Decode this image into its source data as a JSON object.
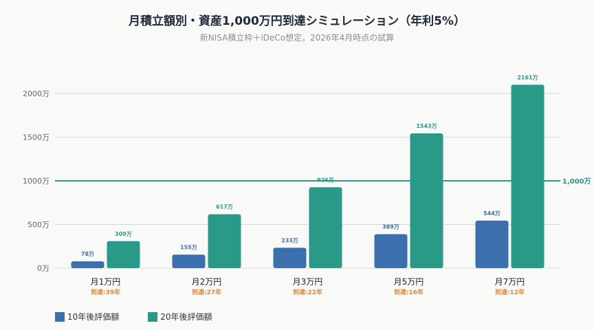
{
  "title": "月積立額別・資産1,000万円到達シミュレーション（年利5%）",
  "subtitle": "新NISA積立枠＋iDeCo想定。2026年4月時点の試算",
  "colors": {
    "series10": "#3b6fad",
    "series20": "#2a9a88",
    "reach": "#e08a3c",
    "target": "#2a9a88",
    "grid": "#d8d8d8",
    "axisText": "#666666"
  },
  "chart_data": {
    "type": "bar",
    "categories": [
      "月1万円",
      "月2万円",
      "月3万円",
      "月5万円",
      "月7万円"
    ],
    "reach_labels": [
      "到達:39年",
      "到達:27年",
      "到達:22年",
      "到達:16年",
      "到達:12年"
    ],
    "series": [
      {
        "name": "10年後評価額",
        "values": [
          78,
          155,
          233,
          389,
          544
        ],
        "labels": [
          "78万",
          "155万",
          "233万",
          "389万",
          "544万"
        ]
      },
      {
        "name": "20年後評価額",
        "values": [
          309,
          617,
          926,
          1543,
          2161
        ],
        "labels": [
          "309万",
          "617万",
          "926万",
          "1543万",
          "2161万"
        ]
      }
    ],
    "ylim": [
      0,
      2000
    ],
    "yticks": [
      0,
      500,
      1000,
      1500,
      2000
    ],
    "ytick_labels": [
      "0万",
      "500万",
      "1000万",
      "1500万",
      "2000万"
    ],
    "reference_line": {
      "value": 1000,
      "label": "1,000万"
    },
    "grid": true,
    "legend_position": "bottom-left"
  }
}
